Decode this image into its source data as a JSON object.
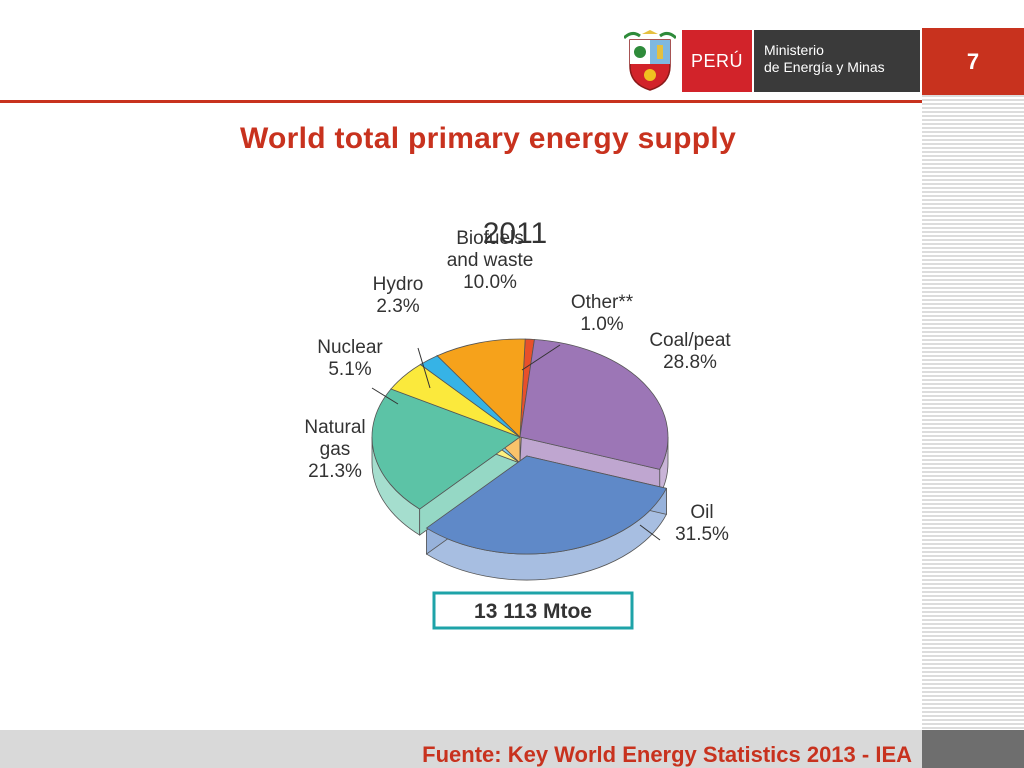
{
  "header": {
    "page_number": "7",
    "logo": {
      "country": "PERÚ",
      "ministry_line1": "Ministerio",
      "ministry_line2": "de Energía y Minas"
    }
  },
  "slide_title": "World total primary energy supply",
  "footer": {
    "source": "Fuente: Key World Energy Statistics 2013 - IEA"
  },
  "colors": {
    "accent": "#c8321e",
    "footer_bg": "#d9d9d9"
  },
  "chart_data": {
    "type": "pie",
    "title": "2011",
    "total_label": "13 113 Mtoe",
    "slices": [
      {
        "label": "Other**",
        "value": 1.0,
        "display": "1.0%",
        "color": "#e8502a"
      },
      {
        "label": "Coal/peat",
        "value": 28.8,
        "display": "28.8%",
        "color": "#9c76b6"
      },
      {
        "label": "Oil",
        "value": 31.5,
        "display": "31.5%",
        "color": "#5f89c8",
        "exploded": true
      },
      {
        "label": "Natural gas",
        "value": 21.3,
        "display": "21.3%",
        "color": "#5cc3a6"
      },
      {
        "label": "Nuclear",
        "value": 5.1,
        "display": "5.1%",
        "color": "#fbe93c"
      },
      {
        "label": "Hydro",
        "value": 2.3,
        "display": "2.3%",
        "color": "#36b3e6"
      },
      {
        "label": "Biofuels and waste",
        "value": 10.0,
        "display": "10.0%",
        "color": "#f6a21b"
      }
    ]
  }
}
